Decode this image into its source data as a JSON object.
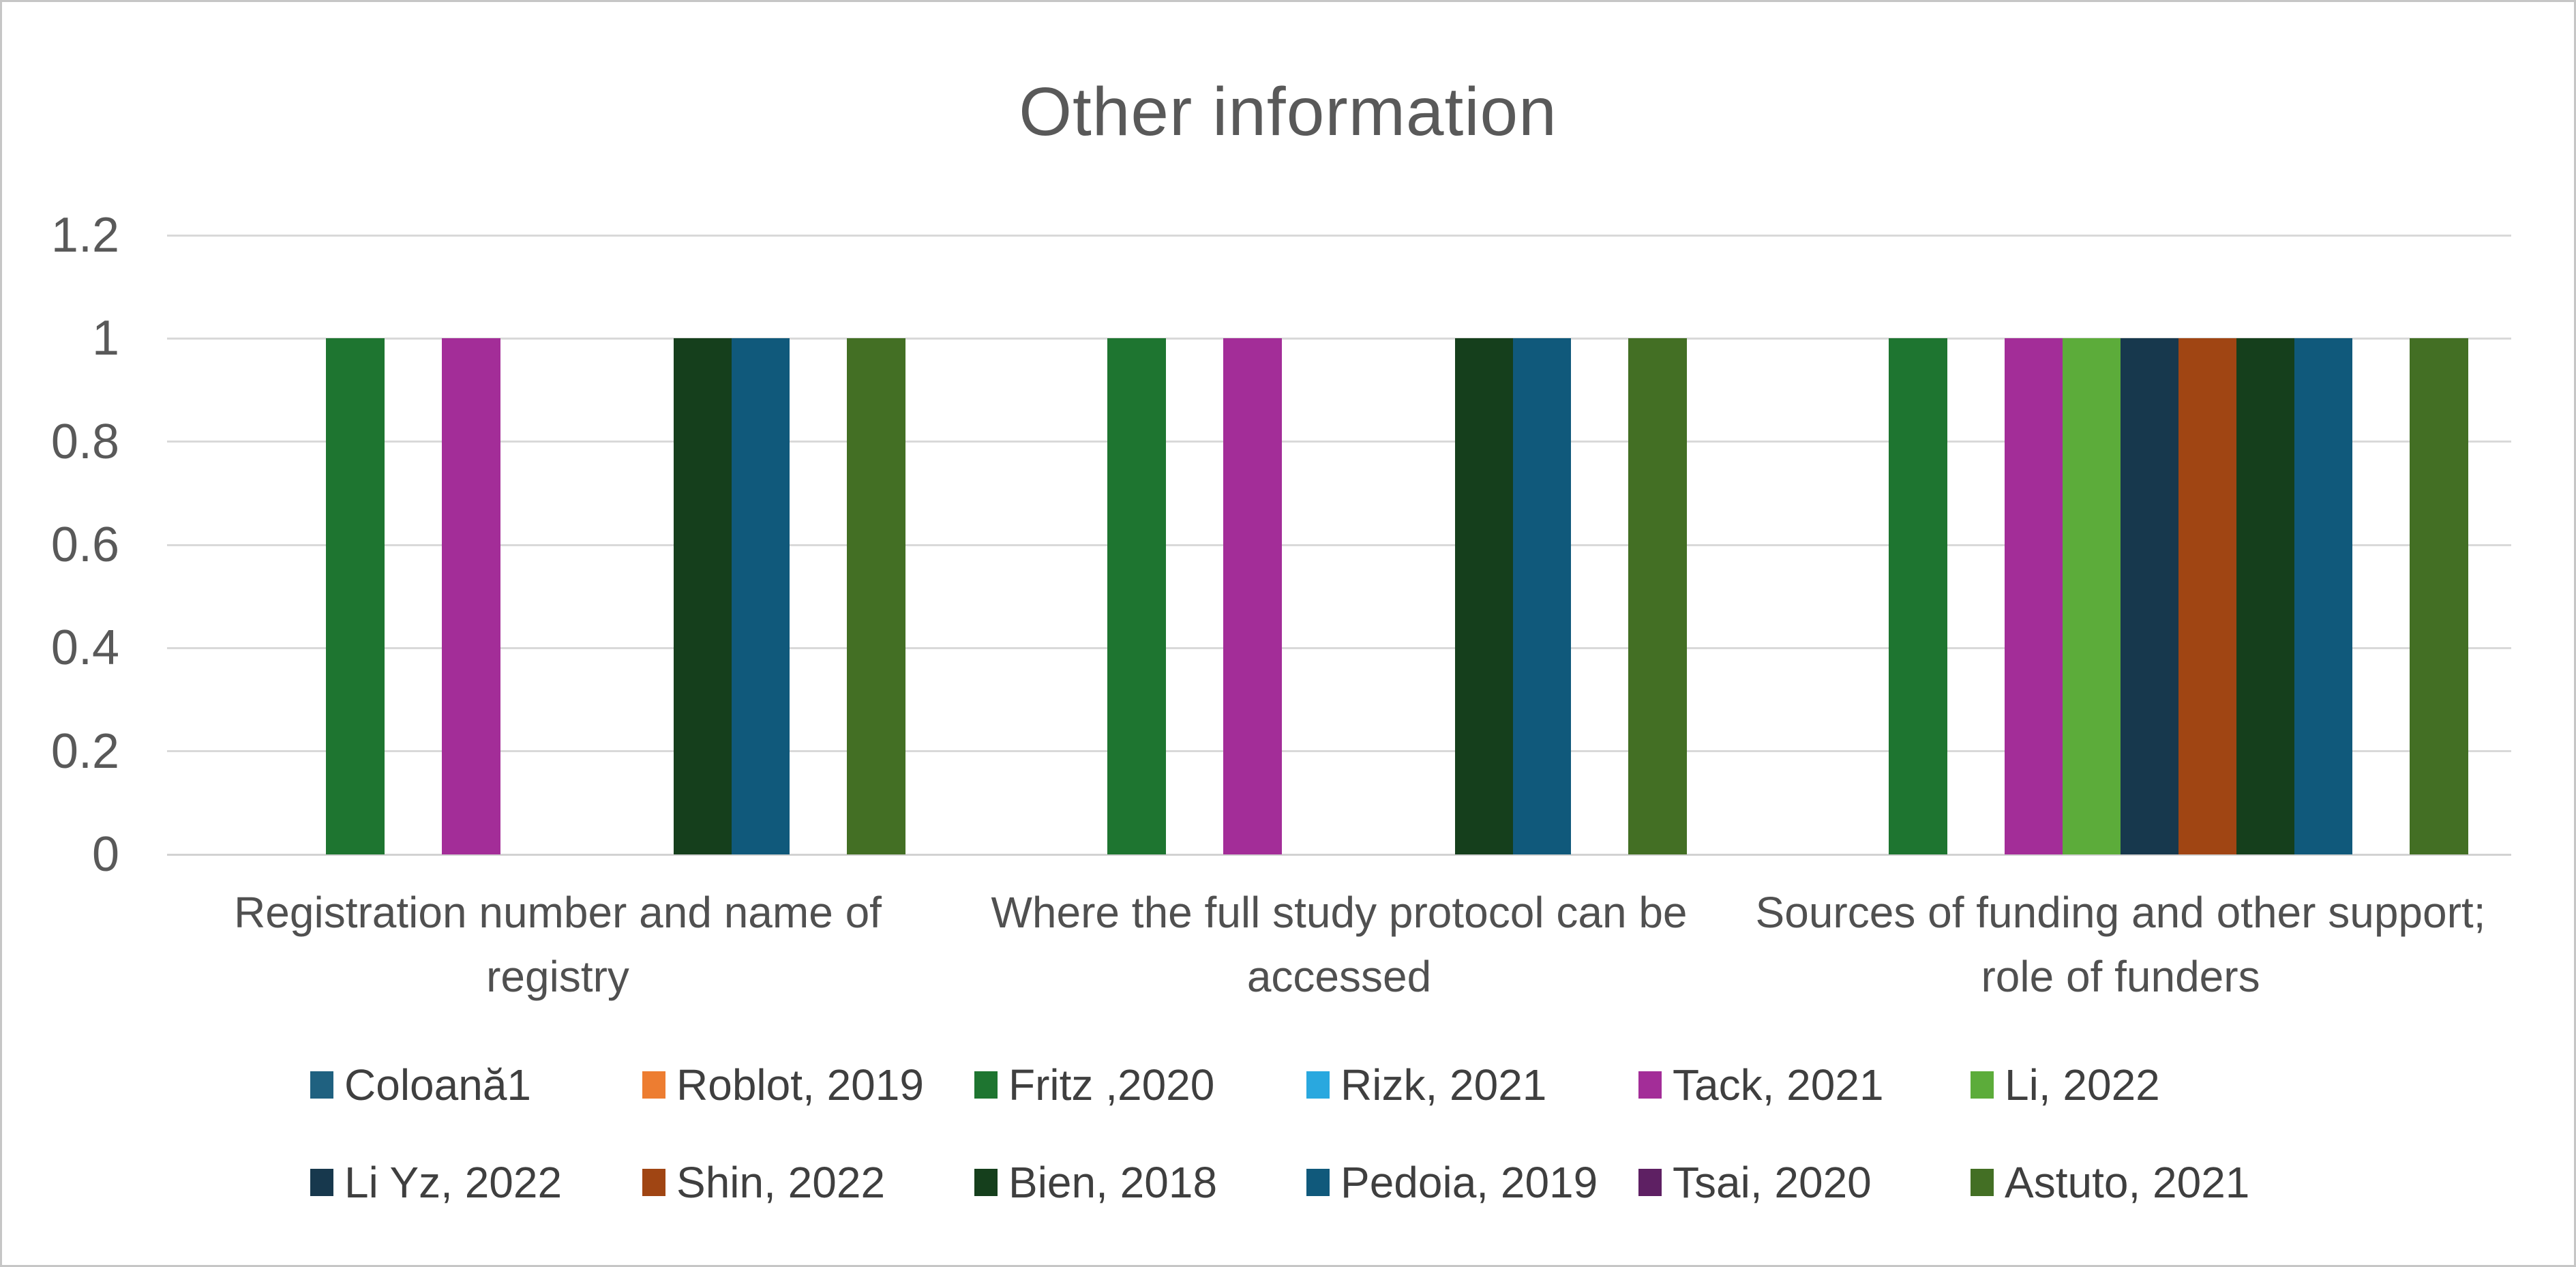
{
  "chart_data": {
    "type": "bar",
    "title": "Other information",
    "categories": [
      "Registration number and name of registry",
      "Where the full study protocol can be accessed",
      "Sources of funding and other support; role of funders"
    ],
    "category_display_lines": [
      [
        "Registration number and name of",
        "registry"
      ],
      [
        "Where the full study protocol can be",
        "accessed"
      ],
      [
        "Sources of funding and other support;",
        "role of funders"
      ]
    ],
    "series": [
      {
        "name": "Coloană1",
        "color": "#1F6180",
        "values": [
          0,
          0,
          0
        ]
      },
      {
        "name": "Roblot, 2019",
        "color": "#ED7D31",
        "values": [
          0,
          0,
          0
        ]
      },
      {
        "name": "Fritz ,2020",
        "color": "#1E7530",
        "values": [
          1,
          1,
          1
        ]
      },
      {
        "name": "Rizk, 2021",
        "color": "#29A8DF",
        "values": [
          0,
          0,
          0
        ]
      },
      {
        "name": "Tack, 2021",
        "color": "#A32D98",
        "values": [
          1,
          1,
          1
        ]
      },
      {
        "name": "Li, 2022",
        "color": "#5CAC3A",
        "values": [
          0,
          0,
          1
        ]
      },
      {
        "name": "Li Yz, 2022",
        "color": "#17384D",
        "values": [
          0,
          0,
          1
        ]
      },
      {
        "name": "Shin, 2022",
        "color": "#A04513",
        "values": [
          0,
          0,
          1
        ]
      },
      {
        "name": "Bien, 2018",
        "color": "#153F1C",
        "values": [
          1,
          1,
          1
        ]
      },
      {
        "name": "Pedoia, 2019",
        "color": "#10597B",
        "values": [
          1,
          1,
          1
        ]
      },
      {
        "name": "Tsai, 2020",
        "color": "#5E2063",
        "values": [
          0,
          0,
          0
        ]
      },
      {
        "name": "Astuto, 2021",
        "color": "#436F24",
        "values": [
          1,
          1,
          1
        ]
      }
    ],
    "ylim": [
      0,
      1.2
    ],
    "yticks": [
      "0",
      "0.2",
      "0.4",
      "0.6",
      "0.8",
      "1",
      "1.2"
    ],
    "grid": true,
    "legend_position": "bottom",
    "legend_rows": 2,
    "legend_columns": 6
  },
  "ui_colors": {
    "title_text": "#595959",
    "axis_text": "#595959",
    "category_text": "#505050",
    "legend_text": "#3f3f3f",
    "gridline": "#d9d9d9",
    "frame_border": "#c6c6c6",
    "background": "#ffffff"
  }
}
